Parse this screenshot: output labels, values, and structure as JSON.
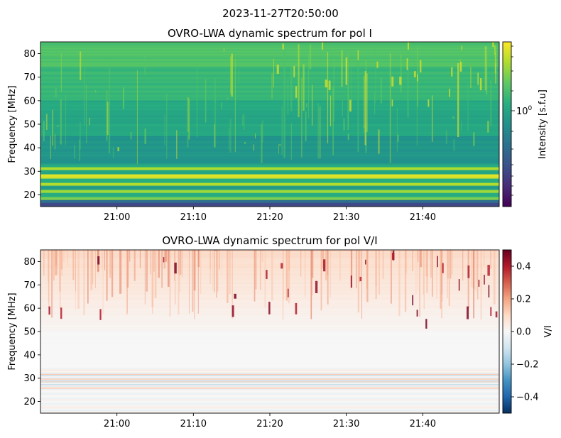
{
  "figure": {
    "suptitle": "2023-11-27T20:50:00"
  },
  "colors": {
    "viridis": [
      "#440154",
      "#472d7b",
      "#3b528b",
      "#2c728e",
      "#21918c",
      "#28ae80",
      "#5ec962",
      "#addc30",
      "#fde725"
    ],
    "rdbu_r": [
      "#053061",
      "#2166ac",
      "#4393c3",
      "#92c5de",
      "#d1e5f0",
      "#f7f7f7",
      "#fddbc7",
      "#f4a582",
      "#d6604d",
      "#b2182b",
      "#67001f"
    ]
  },
  "chart_data": [
    {
      "type": "heatmap",
      "title": "OVRO-LWA dynamic spectrum for pol I",
      "ylabel": "Frequency [MHz]",
      "xlabel": "",
      "x_range": [
        "20:50",
        "21:50"
      ],
      "x_ticks": [
        "21:00",
        "21:10",
        "21:20",
        "21:30",
        "21:40"
      ],
      "ylim": [
        15,
        85
      ],
      "y_ticks": [
        20,
        30,
        40,
        50,
        60,
        70,
        80
      ],
      "colormap": "viridis",
      "colorbar": {
        "label": "Intensity [s.f.u]",
        "scale": "log",
        "tick_label_base": "10",
        "tick_label_exp": "0",
        "tick_value": 1
      },
      "grid": false,
      "description_levels": {
        "bands": [
          {
            "from": 15,
            "to": 17,
            "level": 0.22
          },
          {
            "from": 17,
            "to": 18,
            "level": 0.35
          },
          {
            "from": 18,
            "to": 19.5,
            "level": 0.8
          },
          {
            "from": 19.5,
            "to": 21,
            "level": 0.6
          },
          {
            "from": 21,
            "to": 22.5,
            "level": 0.85
          },
          {
            "from": 22.5,
            "to": 24,
            "level": 0.55
          },
          {
            "from": 24,
            "to": 25.5,
            "level": 0.9
          },
          {
            "from": 25.5,
            "to": 27,
            "level": 0.6
          },
          {
            "from": 27,
            "to": 29,
            "level": 0.95
          },
          {
            "from": 29,
            "to": 30.5,
            "level": 0.6
          },
          {
            "from": 30.5,
            "to": 32,
            "level": 0.85
          },
          {
            "from": 32,
            "to": 33,
            "level": 0.62
          },
          {
            "from": 33,
            "to": 45,
            "level": 0.52
          },
          {
            "from": 45,
            "to": 60,
            "level": 0.6
          },
          {
            "from": 60,
            "to": 75,
            "level": 0.66
          },
          {
            "from": 75,
            "to": 85,
            "level": 0.72
          }
        ]
      }
    },
    {
      "type": "heatmap",
      "title": "OVRO-LWA dynamic spectrum for pol V/I",
      "ylabel": "Frequency [MHz]",
      "xlabel": "",
      "x_range": [
        "20:50",
        "21:50"
      ],
      "x_ticks": [
        "21:00",
        "21:10",
        "21:20",
        "21:30",
        "21:40"
      ],
      "ylim": [
        15,
        85
      ],
      "y_ticks": [
        20,
        30,
        40,
        50,
        60,
        70,
        80
      ],
      "colormap": "RdBu_r",
      "colorbar": {
        "label": "V/I",
        "range": [
          -0.5,
          0.5
        ],
        "ticks": [
          {
            "value": 0.4,
            "label": "0.4"
          },
          {
            "value": 0.2,
            "label": "0.2"
          },
          {
            "value": 0.0,
            "label": "0.0"
          },
          {
            "value": -0.2,
            "label": "−0.2"
          },
          {
            "value": -0.4,
            "label": "−0.4"
          }
        ]
      },
      "grid": false
    }
  ]
}
